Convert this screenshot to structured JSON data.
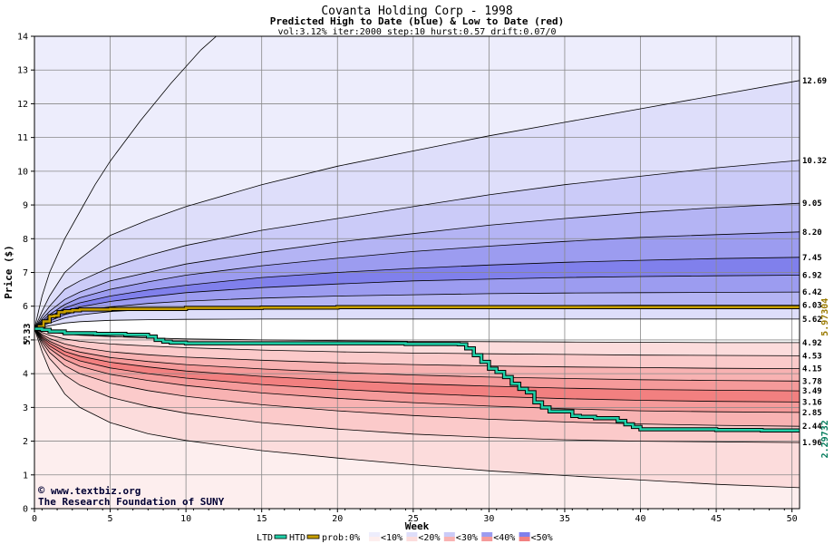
{
  "colors": {
    "background": "#ffffff",
    "grid": "#888888",
    "htd_line": "#c8a000",
    "ltd_line": "#009070",
    "blue_bands": [
      "#ededfc",
      "#dedefa",
      "#cbcbf8",
      "#b4b4f4",
      "#9c9cf0",
      "#8080ec"
    ],
    "red_bands": [
      "#fdeeee",
      "#fcdcdc",
      "#fbcaca",
      "#f8b2b2",
      "#f59a9a",
      "#f28080"
    ],
    "current_label": "#000000",
    "htd_label": "#9a7a00",
    "ltd_label": "#007a5a",
    "credit_text": "#000033"
  },
  "chart_data": {
    "type": "area",
    "title": "Covanta Holding Corp - 1998",
    "subtitle": "Predicted High to Date (blue) &  Low to Date (red)",
    "params": "vol:3.12% iter:2000 step:10 hurst:0.57 drift:0.07/0",
    "xlabel": "Week",
    "ylabel": "Price ($)",
    "xlim": [
      0,
      50.5
    ],
    "ylim": [
      0,
      14
    ],
    "x_ticks": [
      0,
      5,
      10,
      15,
      20,
      25,
      30,
      35,
      40,
      45,
      50
    ],
    "y_ticks": [
      0,
      1,
      2,
      3,
      4,
      5,
      6,
      7,
      8,
      9,
      10,
      11,
      12,
      13,
      14
    ],
    "grid": true,
    "start_price": 5.33,
    "start_label": "5.33",
    "x": [
      0,
      0.5,
      1,
      2,
      3,
      5,
      7.5,
      10,
      15,
      20,
      25,
      30,
      35,
      40,
      45,
      50.5
    ],
    "high_quantiles": [
      {
        "end_label": "12.69",
        "values": [
          5.33,
          5.85,
          6.3,
          7.0,
          7.4,
          8.1,
          8.55,
          8.95,
          9.6,
          10.15,
          10.6,
          11.05,
          11.45,
          11.85,
          12.25,
          12.69
        ]
      },
      {
        "end_label": "10.32",
        "values": [
          5.33,
          5.7,
          6.0,
          6.5,
          6.75,
          7.15,
          7.5,
          7.8,
          8.25,
          8.6,
          8.95,
          9.3,
          9.6,
          9.85,
          10.1,
          10.32
        ]
      },
      {
        "end_label": "9.05",
        "values": [
          5.33,
          5.62,
          5.85,
          6.2,
          6.42,
          6.75,
          7.0,
          7.25,
          7.6,
          7.9,
          8.15,
          8.4,
          8.6,
          8.78,
          8.92,
          9.05
        ]
      },
      {
        "end_label": "8.20",
        "values": [
          5.33,
          5.56,
          5.75,
          6.05,
          6.25,
          6.5,
          6.72,
          6.92,
          7.2,
          7.42,
          7.62,
          7.78,
          7.92,
          8.04,
          8.12,
          8.2
        ]
      },
      {
        "end_label": "7.45",
        "values": [
          5.33,
          5.52,
          5.68,
          5.95,
          6.1,
          6.3,
          6.48,
          6.62,
          6.85,
          7.0,
          7.12,
          7.22,
          7.3,
          7.36,
          7.41,
          7.45
        ]
      },
      {
        "end_label": "6.92",
        "values": [
          5.33,
          5.48,
          5.62,
          5.85,
          5.98,
          6.14,
          6.28,
          6.4,
          6.55,
          6.66,
          6.75,
          6.8,
          6.85,
          6.88,
          6.9,
          6.92
        ]
      },
      {
        "end_label": "6.42",
        "values": [
          5.33,
          5.45,
          5.56,
          5.75,
          5.86,
          5.98,
          6.08,
          6.15,
          6.24,
          6.3,
          6.34,
          6.37,
          6.39,
          6.4,
          6.41,
          6.42
        ]
      },
      {
        "end_label": "6.03",
        "values": [
          5.33,
          5.42,
          5.5,
          5.65,
          5.74,
          5.84,
          5.9,
          5.94,
          5.98,
          6.0,
          6.01,
          6.02,
          6.02,
          6.03,
          6.03,
          6.03
        ]
      },
      {
        "end_label": "5.62",
        "values": [
          5.33,
          5.38,
          5.42,
          5.5,
          5.54,
          5.58,
          5.6,
          5.61,
          5.62,
          5.62,
          5.62,
          5.62,
          5.62,
          5.62,
          5.62,
          5.62
        ]
      }
    ],
    "low_quantiles": [
      {
        "end_label": "4.92",
        "values": [
          5.33,
          5.28,
          5.24,
          5.18,
          5.14,
          5.1,
          5.06,
          5.03,
          5.0,
          4.98,
          4.96,
          4.95,
          4.94,
          4.93,
          4.92,
          4.92
        ]
      },
      {
        "end_label": "4.53",
        "values": [
          5.33,
          5.22,
          5.14,
          5.03,
          4.96,
          4.88,
          4.82,
          4.77,
          4.7,
          4.65,
          4.61,
          4.59,
          4.57,
          4.55,
          4.54,
          4.53
        ]
      },
      {
        "end_label": "4.15",
        "values": [
          5.33,
          5.16,
          5.04,
          4.88,
          4.78,
          4.65,
          4.56,
          4.49,
          4.4,
          4.32,
          4.27,
          4.23,
          4.2,
          4.18,
          4.16,
          4.15
        ]
      },
      {
        "end_label": "3.78",
        "values": [
          5.33,
          5.12,
          4.96,
          4.76,
          4.64,
          4.48,
          4.36,
          4.27,
          4.14,
          4.04,
          3.96,
          3.9,
          3.86,
          3.82,
          3.8,
          3.78
        ]
      },
      {
        "end_label": "3.49",
        "values": [
          5.33,
          5.08,
          4.9,
          4.66,
          4.52,
          4.34,
          4.2,
          4.08,
          3.92,
          3.8,
          3.7,
          3.63,
          3.57,
          3.53,
          3.51,
          3.49
        ]
      },
      {
        "end_label": "3.16",
        "values": [
          5.33,
          5.04,
          4.82,
          4.55,
          4.38,
          4.17,
          4.0,
          3.87,
          3.68,
          3.54,
          3.42,
          3.33,
          3.26,
          3.21,
          3.18,
          3.16
        ]
      },
      {
        "end_label": "2.85",
        "values": [
          5.33,
          4.99,
          4.74,
          4.42,
          4.22,
          3.98,
          3.8,
          3.65,
          3.43,
          3.27,
          3.14,
          3.04,
          2.96,
          2.9,
          2.87,
          2.85
        ]
      },
      {
        "end_label": "2.44",
        "values": [
          5.33,
          4.93,
          4.63,
          4.24,
          4.0,
          3.72,
          3.5,
          3.33,
          3.08,
          2.9,
          2.76,
          2.65,
          2.57,
          2.51,
          2.47,
          2.44
        ]
      },
      {
        "end_label": "1.96",
        "values": [
          5.33,
          4.84,
          4.45,
          3.96,
          3.66,
          3.3,
          3.03,
          2.83,
          2.55,
          2.36,
          2.21,
          2.11,
          2.04,
          2.0,
          1.98,
          1.96
        ]
      },
      {
        "end_label": "",
        "values": [
          5.33,
          4.65,
          4.1,
          3.4,
          3.0,
          2.55,
          2.22,
          2.02,
          1.72,
          1.5,
          1.3,
          1.12,
          0.98,
          0.85,
          0.72,
          0.62
        ]
      }
    ],
    "outer_high": {
      "x": [
        0,
        0.5,
        1,
        2,
        3,
        4,
        5,
        7,
        9,
        11,
        12
      ],
      "values": [
        5.33,
        6.3,
        7.0,
        8.0,
        8.8,
        9.6,
        10.3,
        11.5,
        12.6,
        13.6,
        14.0
      ]
    },
    "htd": {
      "name": "HTD",
      "end_label": "5.97304",
      "x": [
        0,
        0.3,
        0.6,
        1.0,
        1.3,
        1.6,
        2.0,
        2.5,
        3.0,
        5,
        10,
        15,
        20,
        25,
        30,
        35,
        40,
        45,
        50.5
      ],
      "values": [
        5.33,
        5.4,
        5.55,
        5.7,
        5.72,
        5.82,
        5.85,
        5.88,
        5.9,
        5.92,
        5.95,
        5.96,
        5.97,
        5.97,
        5.97,
        5.97,
        5.97,
        5.97,
        5.97
      ]
    },
    "ltd": {
      "name": "LTD",
      "end_label": "2.29732",
      "x": [
        0,
        0.5,
        1,
        2,
        4,
        6,
        7.5,
        8,
        8.5,
        9,
        10,
        15,
        20,
        24.5,
        25,
        28,
        28.5,
        29,
        29.5,
        30,
        30.5,
        31,
        31.5,
        32,
        32.5,
        33,
        33.5,
        34,
        35,
        35.5,
        36,
        37,
        38,
        38.5,
        39,
        39.5,
        40,
        45,
        48,
        50.5
      ],
      "values": [
        5.33,
        5.3,
        5.25,
        5.2,
        5.18,
        5.15,
        5.1,
        5.0,
        4.95,
        4.92,
        4.9,
        4.9,
        4.9,
        4.88,
        4.88,
        4.87,
        4.75,
        4.55,
        4.35,
        4.15,
        4.05,
        3.9,
        3.7,
        3.55,
        3.45,
        3.15,
        3.0,
        2.88,
        2.88,
        2.75,
        2.72,
        2.68,
        2.68,
        2.6,
        2.5,
        2.42,
        2.35,
        2.33,
        2.32,
        2.3
      ]
    },
    "legend": {
      "ltd": "LTD",
      "htd": "HTD",
      "prob_prefix": "prob:",
      "items": [
        "0%",
        "<10%",
        "<20%",
        "<30%",
        "<40%",
        "<50%"
      ]
    },
    "credit": {
      "site": "www.textbiz.org",
      "org": "The Research Foundation of SUNY",
      "copyright_mark": "©"
    }
  }
}
